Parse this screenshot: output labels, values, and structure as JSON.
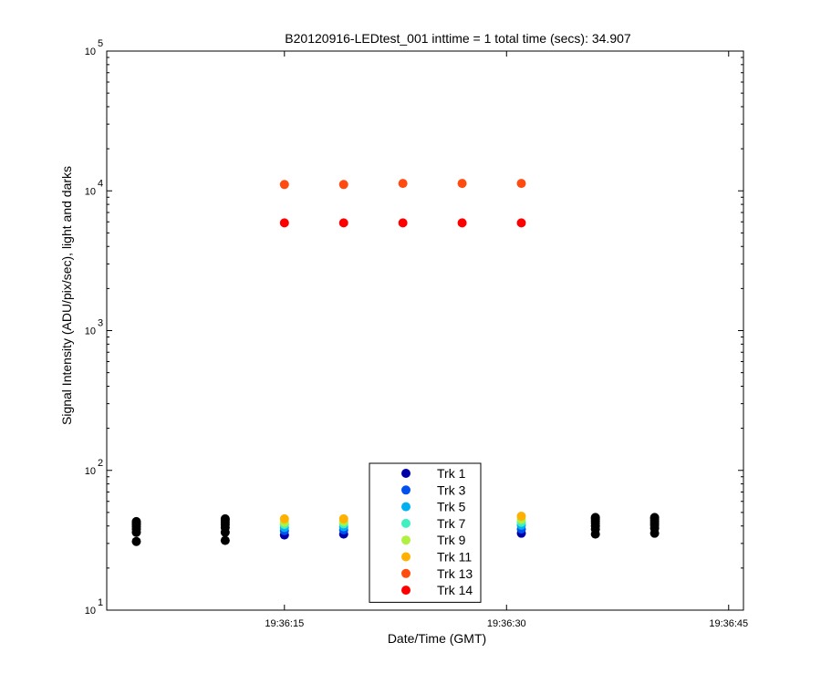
{
  "chart_data": {
    "type": "scatter",
    "title": "B20120916-LEDtest_001 inttime = 1 total time (secs): 34.907",
    "xlabel": "Date/Time (GMT)",
    "ylabel": "Signal Intensity (ADU/pix/sec), light and darks",
    "x_scale": "time",
    "y_scale": "log",
    "xlim": [
      "19:36:03",
      "19:36:46"
    ],
    "ylim": [
      10,
      100000
    ],
    "x_ticks": [
      "19:36:15",
      "19:36:30",
      "19:36:45"
    ],
    "y_ticks": [
      {
        "value": 10,
        "base": "10",
        "exp": "1"
      },
      {
        "value": 100,
        "base": "10",
        "exp": "2"
      },
      {
        "value": 1000,
        "base": "10",
        "exp": "3"
      },
      {
        "value": 10000,
        "base": "10",
        "exp": "4"
      },
      {
        "value": 100000,
        "base": "10",
        "exp": "5"
      }
    ],
    "grid": false,
    "legend_position": "bottom-center",
    "series": [
      {
        "name": "Trk 1",
        "color": "#0000a8",
        "points": [
          {
            "x": "19:36:15",
            "y": 34.5
          },
          {
            "x": "19:36:19",
            "y": 35
          },
          {
            "x": "19:36:31",
            "y": 35.5
          }
        ]
      },
      {
        "name": "Trk 3",
        "color": "#0050f0",
        "points": [
          {
            "x": "19:36:15",
            "y": 37
          },
          {
            "x": "19:36:19",
            "y": 37.5
          },
          {
            "x": "19:36:31",
            "y": 38
          }
        ]
      },
      {
        "name": "Trk 5",
        "color": "#00b0f0",
        "points": [
          {
            "x": "19:36:15",
            "y": 39
          },
          {
            "x": "19:36:19",
            "y": 39.5
          },
          {
            "x": "19:36:31",
            "y": 40.5
          }
        ]
      },
      {
        "name": "Trk 7",
        "color": "#40f0c0",
        "points": [
          {
            "x": "19:36:15",
            "y": 41
          },
          {
            "x": "19:36:19",
            "y": 41.5
          },
          {
            "x": "19:36:31",
            "y": 42.5
          }
        ]
      },
      {
        "name": "Trk 9",
        "color": "#b0f040",
        "points": [
          {
            "x": "19:36:15",
            "y": 42.5
          },
          {
            "x": "19:36:19",
            "y": 43
          },
          {
            "x": "19:36:31",
            "y": 44.5
          }
        ]
      },
      {
        "name": "Trk 11",
        "color": "#ffb000",
        "points": [
          {
            "x": "19:36:15",
            "y": 45
          },
          {
            "x": "19:36:19",
            "y": 45
          },
          {
            "x": "19:36:31",
            "y": 47
          }
        ]
      },
      {
        "name": "Trk 13",
        "color": "#ff4a10",
        "points": [
          {
            "x": "19:36:15",
            "y": 11100
          },
          {
            "x": "19:36:19",
            "y": 11100
          },
          {
            "x": "19:36:23",
            "y": 11300
          },
          {
            "x": "19:36:27",
            "y": 11300
          },
          {
            "x": "19:36:31",
            "y": 11300
          }
        ]
      },
      {
        "name": "Trk 14",
        "color": "#ff0000",
        "points": [
          {
            "x": "19:36:15",
            "y": 5900
          },
          {
            "x": "19:36:19",
            "y": 5900
          },
          {
            "x": "19:36:23",
            "y": 5900
          },
          {
            "x": "19:36:27",
            "y": 5900
          },
          {
            "x": "19:36:31",
            "y": 5900
          }
        ]
      }
    ],
    "darks": {
      "color": "#000000",
      "points": [
        {
          "x": "19:36:05",
          "y": 31
        },
        {
          "x": "19:36:05",
          "y": 36
        },
        {
          "x": "19:36:05",
          "y": 38
        },
        {
          "x": "19:36:05",
          "y": 39.5
        },
        {
          "x": "19:36:05",
          "y": 41
        },
        {
          "x": "19:36:05",
          "y": 42
        },
        {
          "x": "19:36:05",
          "y": 43
        },
        {
          "x": "19:36:11",
          "y": 31.5
        },
        {
          "x": "19:36:11",
          "y": 36
        },
        {
          "x": "19:36:11",
          "y": 39
        },
        {
          "x": "19:36:11",
          "y": 41
        },
        {
          "x": "19:36:11",
          "y": 42.5
        },
        {
          "x": "19:36:11",
          "y": 44
        },
        {
          "x": "19:36:11",
          "y": 45
        },
        {
          "x": "19:36:36",
          "y": 35
        },
        {
          "x": "19:36:36",
          "y": 38
        },
        {
          "x": "19:36:36",
          "y": 40
        },
        {
          "x": "19:36:36",
          "y": 42
        },
        {
          "x": "19:36:36",
          "y": 43.5
        },
        {
          "x": "19:36:36",
          "y": 45
        },
        {
          "x": "19:36:36",
          "y": 46
        },
        {
          "x": "19:36:40",
          "y": 35.5
        },
        {
          "x": "19:36:40",
          "y": 38.5
        },
        {
          "x": "19:36:40",
          "y": 40.5
        },
        {
          "x": "19:36:40",
          "y": 42
        },
        {
          "x": "19:36:40",
          "y": 43.5
        },
        {
          "x": "19:36:40",
          "y": 45
        },
        {
          "x": "19:36:40",
          "y": 46
        }
      ]
    }
  }
}
